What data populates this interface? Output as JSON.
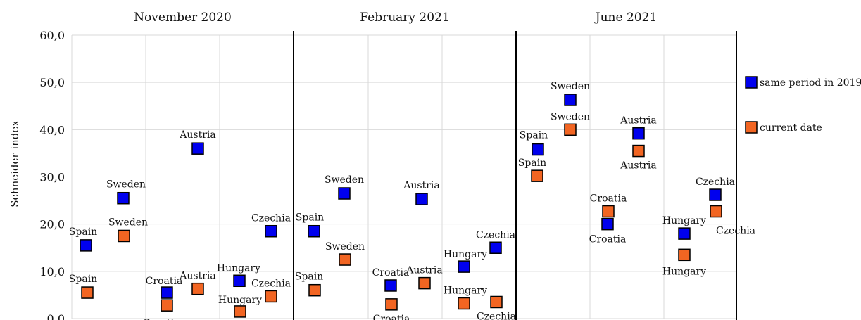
{
  "chart_data": {
    "type": "scatter",
    "ylabel": "Schneider index",
    "ylim": [
      0,
      60
    ],
    "yticks": [
      "0,0",
      "10,0",
      "20,0",
      "30,0",
      "40,0",
      "50,0",
      "60,0"
    ],
    "grid": true,
    "legend_position": "right",
    "panels": [
      {
        "title": "November 2020"
      },
      {
        "title": "February 2021"
      },
      {
        "title": "June 2021"
      }
    ],
    "countries": [
      "Spain",
      "Sweden",
      "Croatia",
      "Austria",
      "Hungary",
      "Czechia"
    ],
    "series": [
      {
        "name": "same period in 2019",
        "color": "#0000ee",
        "values": [
          [
            15.5,
            25.5,
            5.5,
            36.0,
            8.0,
            18.5
          ],
          [
            18.5,
            26.5,
            7.0,
            25.3,
            11.0,
            15.0
          ],
          [
            35.8,
            46.3,
            20.0,
            39.2,
            18.0,
            26.2
          ]
        ]
      },
      {
        "name": "current date",
        "color": "#f26522",
        "values": [
          [
            5.5,
            17.5,
            2.8,
            6.3,
            1.5,
            4.7
          ],
          [
            6.0,
            12.5,
            3.0,
            7.5,
            3.2,
            3.5
          ],
          [
            30.2,
            40.0,
            22.7,
            35.5,
            13.5,
            22.7
          ]
        ]
      }
    ]
  }
}
